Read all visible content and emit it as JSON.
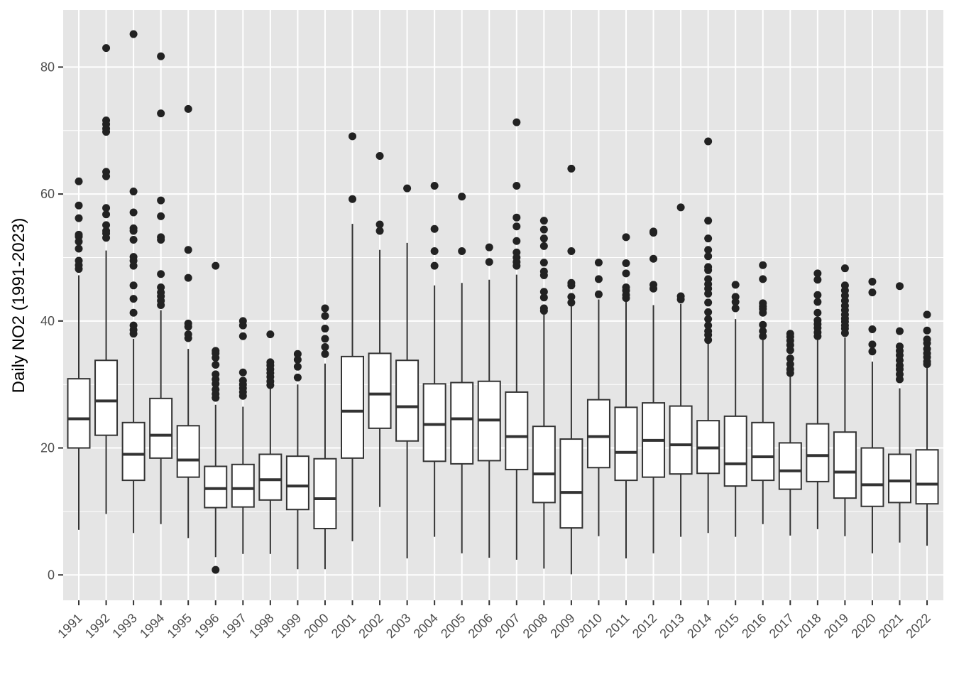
{
  "chart_data": {
    "type": "boxplot",
    "title": "",
    "xlabel": "",
    "ylabel": "Daily NO2 (1991-2023)",
    "ylim": [
      -4,
      89
    ],
    "yticks": [
      0,
      20,
      40,
      60,
      80
    ],
    "grid": true,
    "legend": "none",
    "colors": {
      "panel": "#e5e5e5",
      "grid": "#ffffff",
      "box_fill": "#ffffff",
      "box_line": "#333333",
      "outlier": "#222222",
      "tick_text": "#4d4d4d",
      "axis_title": "#000000"
    },
    "categories": [
      "1991",
      "1992",
      "1993",
      "1994",
      "1995",
      "1996",
      "1997",
      "1998",
      "1999",
      "2000",
      "2001",
      "2002",
      "2003",
      "2004",
      "2005",
      "2006",
      "2007",
      "2008",
      "2009",
      "2010",
      "2011",
      "2012",
      "2013",
      "2014",
      "2015",
      "2016",
      "2017",
      "2018",
      "2019",
      "2020",
      "2021",
      "2022"
    ],
    "boxes": [
      {
        "year": "1991",
        "low": 7.1,
        "q1": 20.0,
        "median": 24.6,
        "q3": 30.9,
        "high": 47.2,
        "outliers": [
          48.2,
          48.8,
          49.5,
          51.4,
          52.5,
          53.3,
          53.6,
          56.2,
          58.2,
          62.0
        ]
      },
      {
        "year": "1992",
        "low": 9.6,
        "q1": 22.0,
        "median": 27.4,
        "q3": 33.8,
        "high": 51.1,
        "outliers": [
          53.1,
          53.8,
          54.2,
          55.1,
          56.8,
          57.8,
          62.8,
          63.5,
          69.8,
          70.3,
          71.0,
          71.6,
          83.0
        ]
      },
      {
        "year": "1993",
        "low": 6.6,
        "q1": 14.9,
        "median": 19.0,
        "q3": 24.0,
        "high": 37.2,
        "outliers": [
          38.0,
          38.6,
          39.3,
          41.3,
          43.5,
          45.6,
          48.7,
          49.5,
          50.1,
          52.8,
          54.2,
          54.6,
          57.1,
          60.4,
          85.2
        ]
      },
      {
        "year": "1994",
        "low": 8.0,
        "q1": 18.4,
        "median": 22.0,
        "q3": 27.8,
        "high": 41.7,
        "outliers": [
          42.5,
          43.2,
          43.9,
          44.5,
          45.3,
          47.4,
          52.8,
          53.2,
          56.5,
          59.0,
          72.7,
          81.7
        ]
      },
      {
        "year": "1995",
        "low": 5.8,
        "q1": 15.4,
        "median": 18.1,
        "q3": 23.5,
        "high": 35.6,
        "outliers": [
          37.3,
          37.9,
          39.1,
          39.6,
          46.8,
          51.2,
          73.4
        ]
      },
      {
        "year": "1996",
        "low": 2.8,
        "q1": 10.6,
        "median": 13.6,
        "q3": 17.1,
        "high": 26.8,
        "outliers": [
          0.8,
          27.9,
          28.5,
          29.2,
          30.1,
          30.8,
          31.6,
          33.1,
          34.2,
          34.9,
          35.3,
          48.7
        ]
      },
      {
        "year": "1997",
        "low": 3.3,
        "q1": 10.7,
        "median": 13.6,
        "q3": 17.4,
        "high": 26.5,
        "outliers": [
          28.2,
          28.8,
          29.4,
          30.0,
          30.6,
          31.9,
          37.6,
          39.3,
          40.0
        ]
      },
      {
        "year": "1998",
        "low": 3.3,
        "q1": 11.8,
        "median": 15.0,
        "q3": 19.0,
        "high": 29.5,
        "outliers": [
          29.9,
          30.5,
          31.2,
          31.8,
          32.4,
          33.0,
          33.5,
          37.9
        ]
      },
      {
        "year": "1999",
        "low": 0.9,
        "q1": 10.3,
        "median": 14.0,
        "q3": 18.7,
        "high": 30.0,
        "outliers": [
          31.1,
          32.8,
          33.9,
          34.8
        ]
      },
      {
        "year": "2000",
        "low": 0.9,
        "q1": 7.3,
        "median": 12.0,
        "q3": 18.3,
        "high": 33.3,
        "outliers": [
          34.8,
          35.9,
          37.2,
          38.8,
          40.8,
          42.0
        ]
      },
      {
        "year": "2001",
        "low": 5.3,
        "q1": 18.4,
        "median": 25.8,
        "q3": 34.4,
        "high": 55.3,
        "outliers": [
          59.2,
          69.1
        ]
      },
      {
        "year": "2002",
        "low": 10.7,
        "q1": 23.1,
        "median": 28.5,
        "q3": 34.9,
        "high": 51.2,
        "outliers": [
          54.2,
          55.2,
          66.0
        ]
      },
      {
        "year": "2003",
        "low": 2.6,
        "q1": 21.1,
        "median": 26.5,
        "q3": 33.8,
        "high": 52.3,
        "outliers": [
          60.9
        ]
      },
      {
        "year": "2004",
        "low": 6.0,
        "q1": 17.9,
        "median": 23.7,
        "q3": 30.1,
        "high": 45.6,
        "outliers": [
          48.7,
          51.0,
          54.5,
          61.3
        ]
      },
      {
        "year": "2005",
        "low": 3.4,
        "q1": 17.5,
        "median": 24.6,
        "q3": 30.3,
        "high": 46.0,
        "outliers": [
          51.0,
          59.6
        ]
      },
      {
        "year": "2006",
        "low": 2.7,
        "q1": 18.0,
        "median": 24.4,
        "q3": 30.5,
        "high": 46.5,
        "outliers": [
          49.3,
          51.6
        ]
      },
      {
        "year": "2007",
        "low": 2.4,
        "q1": 16.6,
        "median": 21.8,
        "q3": 28.8,
        "high": 47.3,
        "outliers": [
          48.7,
          49.3,
          50.0,
          50.8,
          52.6,
          54.9,
          56.3,
          61.3,
          71.3
        ]
      },
      {
        "year": "2008",
        "low": 1.0,
        "q1": 11.4,
        "median": 15.9,
        "q3": 23.4,
        "high": 41.0,
        "outliers": [
          41.6,
          42.0,
          43.7,
          44.6,
          47.2,
          47.8,
          49.2,
          51.8,
          53.0,
          54.4,
          55.8
        ]
      },
      {
        "year": "2009",
        "low": 0.1,
        "q1": 7.4,
        "median": 13.0,
        "q3": 21.4,
        "high": 42.4,
        "outliers": [
          42.9,
          43.8,
          45.6,
          46.0,
          51.0,
          64.0
        ]
      },
      {
        "year": "2010",
        "low": 6.1,
        "q1": 16.9,
        "median": 21.8,
        "q3": 27.6,
        "high": 43.4,
        "outliers": [
          44.2,
          46.6,
          49.2
        ]
      },
      {
        "year": "2011",
        "low": 2.6,
        "q1": 14.9,
        "median": 19.3,
        "q3": 26.4,
        "high": 43.0,
        "outliers": [
          43.6,
          44.1,
          44.8,
          45.3,
          47.5,
          49.1,
          53.2
        ]
      },
      {
        "year": "2012",
        "low": 3.4,
        "q1": 15.4,
        "median": 21.2,
        "q3": 27.1,
        "high": 42.5,
        "outliers": [
          45.1,
          45.7,
          49.8,
          53.9,
          54.1
        ]
      },
      {
        "year": "2013",
        "low": 6.0,
        "q1": 15.9,
        "median": 20.5,
        "q3": 26.6,
        "high": 42.7,
        "outliers": [
          43.4,
          43.9,
          57.9
        ]
      },
      {
        "year": "2014",
        "low": 6.6,
        "q1": 16.0,
        "median": 20.0,
        "q3": 24.3,
        "high": 36.5,
        "outliers": [
          37.0,
          37.8,
          38.4,
          39.3,
          40.3,
          41.4,
          42.9,
          44.3,
          45.1,
          45.8,
          46.6,
          48.0,
          48.5,
          50.2,
          51.2,
          53.0,
          55.8,
          68.3
        ]
      },
      {
        "year": "2015",
        "low": 6.0,
        "q1": 14.0,
        "median": 17.5,
        "q3": 25.0,
        "high": 40.3,
        "outliers": [
          42.0,
          43.0,
          43.8,
          45.7
        ]
      },
      {
        "year": "2016",
        "low": 8.0,
        "q1": 14.9,
        "median": 18.6,
        "q3": 24.0,
        "high": 37.0,
        "outliers": [
          37.6,
          38.4,
          39.4,
          41.3,
          41.9,
          42.3,
          42.8,
          46.6,
          48.8
        ]
      },
      {
        "year": "2017",
        "low": 6.2,
        "q1": 13.5,
        "median": 16.4,
        "q3": 20.8,
        "high": 31.2,
        "outliers": [
          31.8,
          32.4,
          33.2,
          34.1,
          35.4,
          36.2,
          36.9,
          37.5,
          38.0
        ]
      },
      {
        "year": "2018",
        "low": 7.2,
        "q1": 14.7,
        "median": 18.8,
        "q3": 23.8,
        "high": 37.0,
        "outliers": [
          37.6,
          38.2,
          38.9,
          39.5,
          40.1,
          41.3,
          43.0,
          44.1,
          46.5,
          47.5
        ]
      },
      {
        "year": "2019",
        "low": 6.1,
        "q1": 12.1,
        "median": 16.2,
        "q3": 22.5,
        "high": 37.4,
        "outliers": [
          38.1,
          38.8,
          39.3,
          39.9,
          40.4,
          41.0,
          41.7,
          42.4,
          43.2,
          44.0,
          44.8,
          45.6,
          48.3
        ]
      },
      {
        "year": "2020",
        "low": 3.4,
        "q1": 10.8,
        "median": 14.2,
        "q3": 20.0,
        "high": 33.6,
        "outliers": [
          35.2,
          36.3,
          38.7,
          44.5,
          46.2
        ]
      },
      {
        "year": "2021",
        "low": 5.1,
        "q1": 11.4,
        "median": 14.8,
        "q3": 19.0,
        "high": 29.4,
        "outliers": [
          30.8,
          31.6,
          32.4,
          33.0,
          33.8,
          34.6,
          35.3,
          36.0,
          38.4,
          45.5
        ]
      },
      {
        "year": "2022",
        "low": 4.6,
        "q1": 11.2,
        "median": 14.3,
        "q3": 19.7,
        "high": 32.8,
        "outliers": [
          33.2,
          33.6,
          34.3,
          34.9,
          35.6,
          36.5,
          37.1,
          38.5,
          41.0
        ]
      }
    ]
  }
}
